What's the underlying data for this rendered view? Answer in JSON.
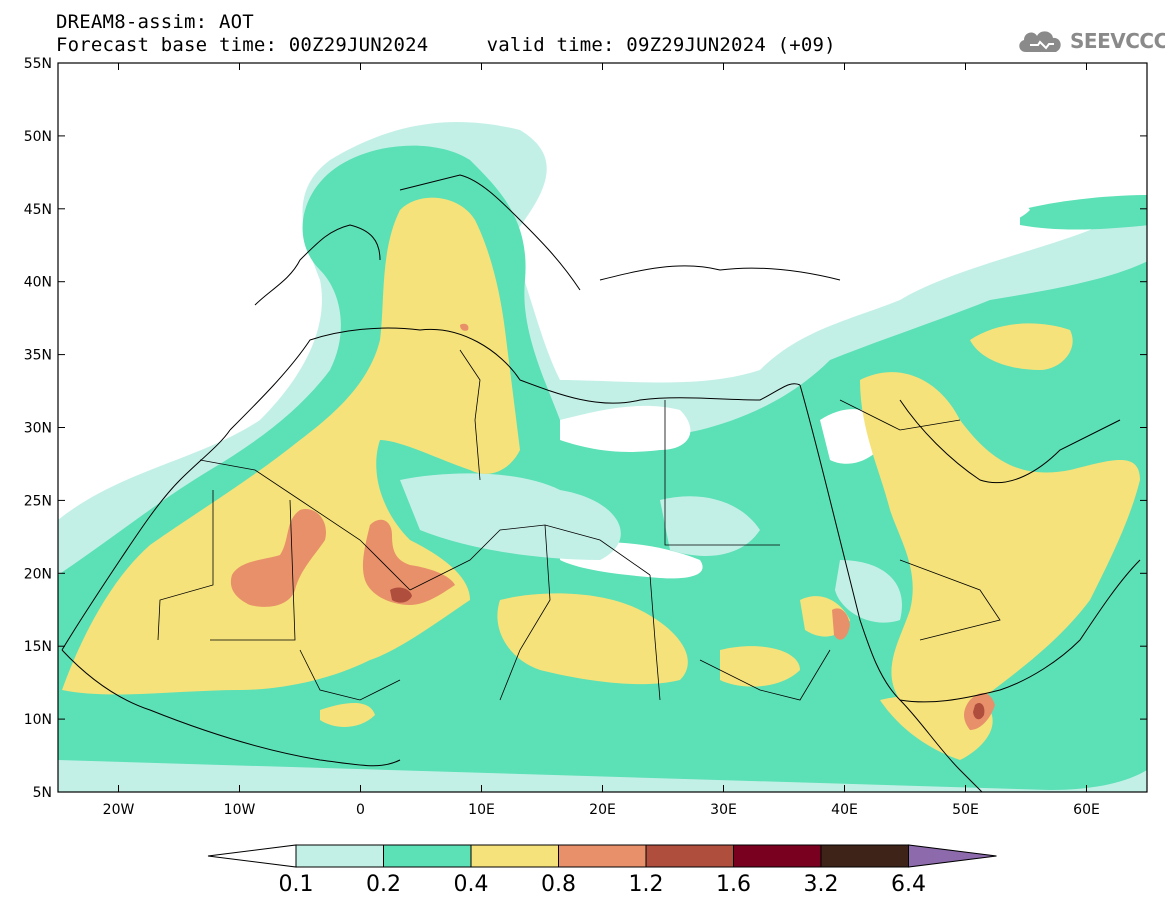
{
  "header": {
    "title_line1": "DREAM8-assim: AOT",
    "title_line2": "Forecast base time: 00Z29JUN2024     valid time: 09Z29JUN2024 (+09)",
    "logo_text": "SEEVCCC",
    "logo_color": "#8a8a8a"
  },
  "map": {
    "projection": "lat-lon",
    "lon_range": [
      -25,
      65
    ],
    "lat_range": [
      5,
      55
    ],
    "lon_ticks": [
      {
        "value": -20,
        "label": "20W"
      },
      {
        "value": -10,
        "label": "10W"
      },
      {
        "value": 0,
        "label": "0"
      },
      {
        "value": 10,
        "label": "10E"
      },
      {
        "value": 20,
        "label": "20E"
      },
      {
        "value": 30,
        "label": "30E"
      },
      {
        "value": 40,
        "label": "40E"
      },
      {
        "value": 50,
        "label": "50E"
      },
      {
        "value": 60,
        "label": "60E"
      }
    ],
    "lat_ticks": [
      {
        "value": 55,
        "label": "55N"
      },
      {
        "value": 50,
        "label": "50N"
      },
      {
        "value": 45,
        "label": "45N"
      },
      {
        "value": 40,
        "label": "40N"
      },
      {
        "value": 35,
        "label": "35N"
      },
      {
        "value": 30,
        "label": "30N"
      },
      {
        "value": 25,
        "label": "25N"
      },
      {
        "value": 20,
        "label": "20N"
      },
      {
        "value": 15,
        "label": "15N"
      },
      {
        "value": 10,
        "label": "10N"
      },
      {
        "value": 5,
        "label": "5N"
      }
    ]
  },
  "colorbar": {
    "levels": [
      "0.1",
      "0.2",
      "0.4",
      "0.8",
      "1.2",
      "1.6",
      "3.2",
      "6.4"
    ],
    "colors": [
      "#c3f0e6",
      "#5ce0b6",
      "#f5e27a",
      "#e8906a",
      "#b04e3e",
      "#7a0020",
      "#3e2418",
      "#8c6aac"
    ],
    "below_color": "#ffffff"
  }
}
